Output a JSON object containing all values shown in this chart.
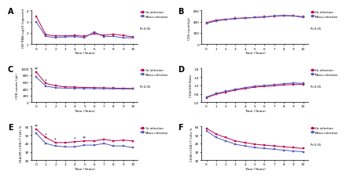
{
  "time": [
    0,
    1,
    2,
    3,
    4,
    5,
    6,
    7,
    8,
    9,
    10
  ],
  "panel_A": {
    "label": "A",
    "ylabel": "HIV RNA Log10 Copies/ml",
    "ylim": [
      1.0,
      4.0
    ],
    "yticks": [
      1.0,
      2.0,
      3.0,
      4.0
    ],
    "co": [
      3.5,
      1.85,
      1.75,
      1.75,
      1.78,
      1.72,
      1.95,
      1.8,
      1.9,
      1.78,
      1.65
    ],
    "mono": [
      3.0,
      1.7,
      1.6,
      1.65,
      1.68,
      1.6,
      2.1,
      1.68,
      1.7,
      1.58,
      1.58
    ],
    "pval": "P>0.05"
  },
  "panel_B": {
    "label": "B",
    "ylabel": "CD4 count(/μL)",
    "ylim": [
      0,
      600
    ],
    "yticks": [
      0,
      200,
      400,
      600
    ],
    "co": [
      385,
      430,
      445,
      460,
      470,
      478,
      488,
      500,
      510,
      505,
      490
    ],
    "mono": [
      370,
      415,
      438,
      455,
      465,
      474,
      484,
      504,
      512,
      506,
      476
    ],
    "pval": "P>0.05"
  },
  "panel_C": {
    "label": "C",
    "ylabel": "CD8 counts (/μL)",
    "ylim": [
      0,
      1000
    ],
    "yticks": [
      0,
      200,
      400,
      600,
      800,
      1000
    ],
    "co": [
      900,
      560,
      490,
      460,
      450,
      440,
      435,
      430,
      420,
      415,
      410
    ],
    "mono": [
      750,
      480,
      430,
      420,
      412,
      408,
      405,
      402,
      400,
      398,
      395
    ],
    "pval": "P>0.05",
    "stars_times": [
      0,
      1
    ],
    "stars_labels": [
      "**",
      "*"
    ]
  },
  "panel_D": {
    "label": "D",
    "ylabel": "CD4/CD8 Ratio",
    "ylim": [
      0.2,
      1.8
    ],
    "yticks": [
      0.2,
      0.6,
      1.0,
      1.4,
      1.8
    ],
    "co": [
      0.42,
      0.58,
      0.68,
      0.78,
      0.85,
      0.92,
      0.95,
      0.98,
      1.02,
      1.05,
      1.05
    ],
    "mono": [
      0.45,
      0.62,
      0.72,
      0.82,
      0.9,
      0.96,
      1.0,
      1.04,
      1.08,
      1.12,
      1.1
    ],
    "pval": "P>0.05"
  },
  "panel_E": {
    "label": "E",
    "ylabel": "HLA-DR+CD8+T Cells %",
    "ylim": [
      20,
      60
    ],
    "yticks": [
      20,
      30,
      40,
      50,
      60
    ],
    "co": [
      57,
      47,
      41,
      41,
      42,
      43,
      43,
      45,
      43,
      44,
      43
    ],
    "mono": [
      52,
      40,
      37,
      36,
      36,
      38,
      38,
      40,
      37,
      37,
      35
    ],
    "pval": "",
    "stars_times": [
      0,
      1,
      2,
      4,
      5
    ],
    "stars_labels": [
      "**",
      "*",
      "*",
      "*",
      "**"
    ]
  },
  "panel_F": {
    "label": "F",
    "ylabel": "CD38+CD8+T Cells %",
    "ylim": [
      20,
      60
    ],
    "yticks": [
      20,
      30,
      40,
      50,
      60
    ],
    "co": [
      58,
      51,
      47,
      43,
      41,
      39,
      38,
      37,
      36,
      35,
      34
    ],
    "mono": [
      55,
      47,
      43,
      39,
      37,
      35,
      34,
      33,
      32,
      31,
      30
    ],
    "pval": "P>0.05"
  },
  "co_color": "#c0004a",
  "mono_color": "#5555bb",
  "xlabel": "Time (Years)"
}
